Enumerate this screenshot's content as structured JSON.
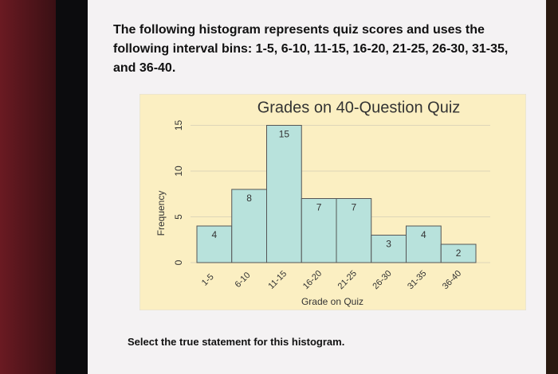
{
  "question": "The following histogram represents quiz scores and uses the following interval bins: 1-5, 6-10, 11-15, 16-20, 21-25, 26-30, 31-35, and 36-40.",
  "prompt": "Select the true statement for this histogram.",
  "chart_data": {
    "type": "bar",
    "title": "Grades on 40-Question Quiz",
    "x_label": "Grade on Quiz",
    "y_label": "Frequency",
    "categories": [
      "1-5",
      "6-10",
      "11-15",
      "16-20",
      "21-25",
      "26-30",
      "31-35",
      "36-40"
    ],
    "values": [
      4,
      8,
      15,
      7,
      7,
      3,
      4,
      2
    ],
    "color": "#b8e2dc",
    "ylim": [
      0,
      16
    ],
    "yticks": [
      0,
      5,
      10,
      15
    ],
    "grid": true
  }
}
